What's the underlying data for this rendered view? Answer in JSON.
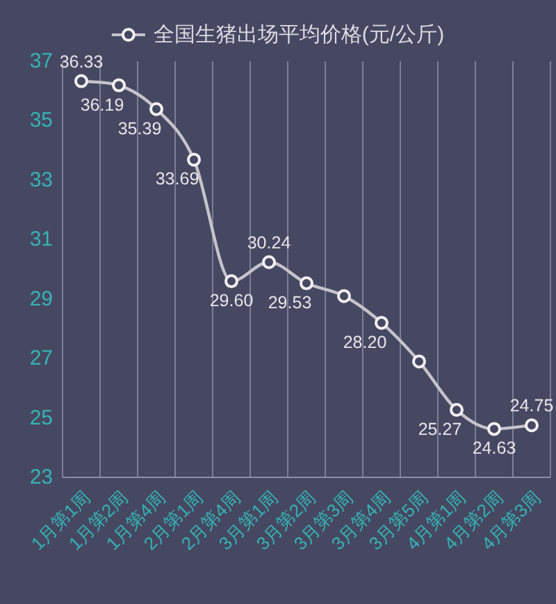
{
  "chart_data": {
    "type": "line",
    "categories": [
      "1月第1周",
      "1月第2周",
      "1月第4周",
      "2月第1周",
      "2月第4周",
      "3月第1周",
      "3月第2周",
      "3月第3周",
      "3月第4周",
      "3月第5周",
      "4月第1周",
      "4月第2周",
      "4月第3周"
    ],
    "series": [
      {
        "name": "全国生猪出场平均价格(元/公斤)",
        "color": "#c4c4cc",
        "values": [
          36.33,
          36.19,
          35.39,
          33.69,
          29.6,
          30.24,
          29.53,
          29.1,
          28.2,
          26.9,
          25.27,
          24.63,
          24.75
        ],
        "value_labels": [
          "36.33",
          "36.19",
          "35.39",
          "33.69",
          "29.60",
          "30.24",
          "29.53",
          null,
          "28.20",
          null,
          "25.27",
          "24.63",
          "24.75"
        ]
      }
    ],
    "ylim": [
      23,
      37
    ],
    "yticks": [
      23,
      25,
      27,
      29,
      31,
      33,
      35,
      37
    ],
    "grid": "x",
    "legend": "top",
    "marker": "circle"
  }
}
